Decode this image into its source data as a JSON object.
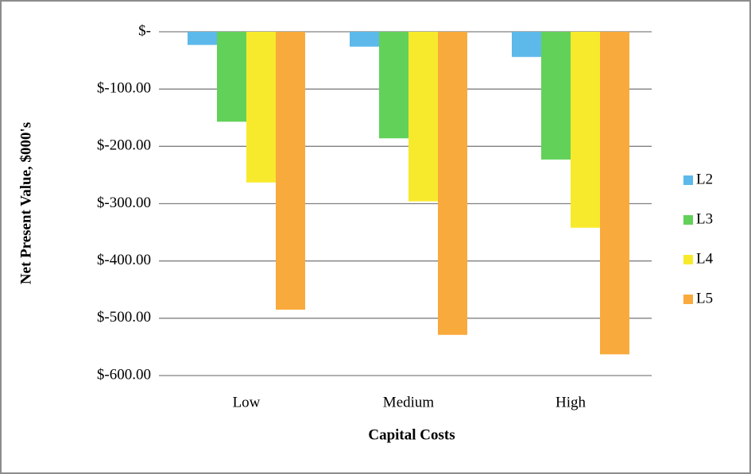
{
  "chart_data": {
    "type": "bar",
    "x_label": "Capital Costs",
    "y_label": "Net Present Value, $000's",
    "categories": [
      "Low",
      "Medium",
      "High"
    ],
    "series": [
      {
        "name": "L2",
        "color": "#5cb9ea",
        "values": [
          -23,
          -26,
          -44
        ]
      },
      {
        "name": "L3",
        "color": "#62d15a",
        "values": [
          -157,
          -186,
          -223
        ]
      },
      {
        "name": "L4",
        "color": "#f7ea2c",
        "values": [
          -263,
          -296,
          -342
        ]
      },
      {
        "name": "L5",
        "color": "#f9aa3c",
        "values": [
          -485,
          -529,
          -563
        ]
      }
    ],
    "ylim": [
      -600,
      0
    ],
    "yticks": [
      {
        "value": 0,
        "label": "$-"
      },
      {
        "value": -100,
        "label": "$-100.00"
      },
      {
        "value": -200,
        "label": "$-200.00"
      },
      {
        "value": -300,
        "label": "$-300.00"
      },
      {
        "value": -400,
        "label": "$-400.00"
      },
      {
        "value": -500,
        "label": "$-500.00"
      },
      {
        "value": -600,
        "label": "$-600.00"
      }
    ],
    "grid": true,
    "legend": "right"
  }
}
